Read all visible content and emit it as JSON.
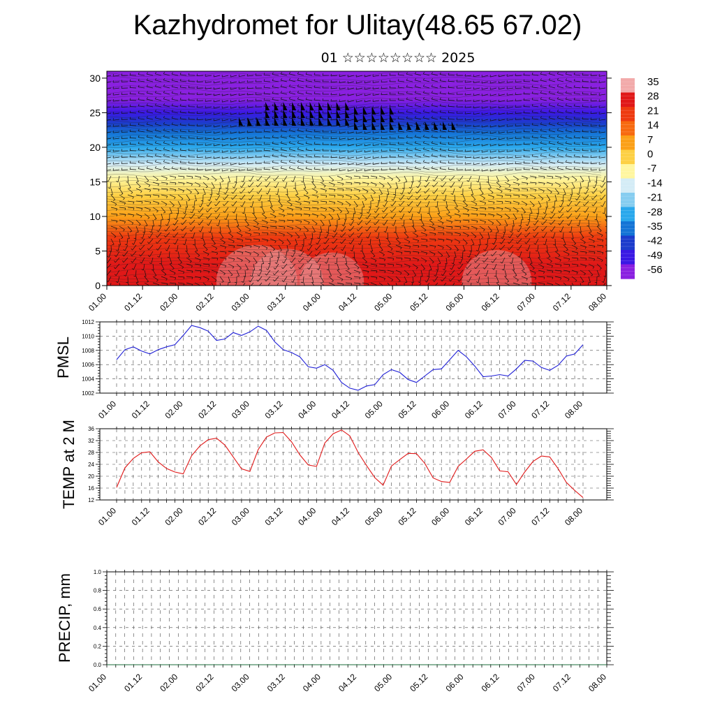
{
  "title": "Kazhydromet for Ulitay(48.65 67.02)",
  "subtitle": "01 ☆☆☆☆☆☆☆☆ 2025",
  "time_ticks": [
    "01.00",
    "01.12",
    "02.00",
    "02.12",
    "03.00",
    "03.12",
    "04.00",
    "04.12",
    "05.00",
    "05.12",
    "06.00",
    "06.12",
    "07.00",
    "07.12",
    "08.00"
  ],
  "chart_data": [
    {
      "type": "heatmap",
      "name": "cross-section",
      "x_ticks": [
        "01.00",
        "01.12",
        "02.00",
        "02.12",
        "03.00",
        "03.12",
        "04.00",
        "04.12",
        "05.00",
        "05.12",
        "06.00",
        "06.12",
        "07.00",
        "07.12",
        "08.00"
      ],
      "y_ticks": [
        0,
        5,
        10,
        15,
        20,
        25,
        30
      ],
      "ylim": [
        0,
        31
      ],
      "colorbar_labels": [
        "35",
        "28",
        "21",
        "14",
        "7",
        "0",
        "-7",
        "-14",
        "-21",
        "-28",
        "-35",
        "-42",
        "-49",
        "-56"
      ],
      "colorbar_colors": [
        "#f2aaaa",
        "#e01818",
        "#ee3a10",
        "#f76a10",
        "#fba018",
        "#fdd044",
        "#fff6a0",
        "#d4ecf6",
        "#86cdf0",
        "#2aa8ec",
        "#1474d6",
        "#1c3ccc",
        "#3a18e4",
        "#8a20e0"
      ],
      "levels": [
        {
          "height": 0,
          "temp": 30
        },
        {
          "height": 3,
          "temp": 27
        },
        {
          "height": 7,
          "temp": 18
        },
        {
          "height": 10,
          "temp": 10
        },
        {
          "height": 13,
          "temp": 2
        },
        {
          "height": 15.5,
          "temp": -8
        },
        {
          "height": 17.5,
          "temp": -15
        },
        {
          "height": 20,
          "temp": -26
        },
        {
          "height": 22,
          "temp": -36
        },
        {
          "height": 23.5,
          "temp": -44
        },
        {
          "height": 25,
          "temp": -52
        },
        {
          "height": 27,
          "temp": -57
        },
        {
          "height": 31,
          "temp": -60
        }
      ]
    },
    {
      "type": "line",
      "name": "PMSL",
      "ylabel": "PMSL",
      "ylim": [
        1002,
        1012
      ],
      "y_ticks": [
        1002,
        1004,
        1006,
        1008,
        1010,
        1012
      ],
      "x_ticks": [
        "01.00",
        "01.12",
        "02.00",
        "02.12",
        "03.00",
        "03.12",
        "04.00",
        "04.12",
        "05.00",
        "05.12",
        "06.00",
        "06.12",
        "07.00",
        "07.12",
        "08.00"
      ],
      "color": "#1f1fd6",
      "x": [
        0,
        3,
        6,
        9,
        12,
        15,
        18,
        21,
        24,
        27,
        30,
        33,
        36,
        39,
        42,
        45,
        48,
        51,
        54,
        57,
        60,
        63,
        66,
        69,
        72,
        75,
        78,
        81,
        84,
        87,
        90,
        93,
        96,
        99,
        102,
        105,
        108,
        111,
        114,
        117,
        120,
        123,
        126,
        129,
        132,
        135,
        138,
        141,
        144,
        147,
        150,
        153,
        156,
        159,
        162,
        165,
        168
      ],
      "values": [
        1006.7,
        1008.1,
        1008.5,
        1007.9,
        1007.5,
        1008.1,
        1008.5,
        1008.8,
        1010.1,
        1011.5,
        1011.2,
        1010.7,
        1009.4,
        1009.6,
        1010.5,
        1010.1,
        1010.6,
        1011.4,
        1010.8,
        1009.2,
        1008.1,
        1007.7,
        1007.1,
        1005.7,
        1005.5,
        1006.0,
        1005.2,
        1003.5,
        1002.7,
        1002.4,
        1003.0,
        1003.2,
        1004.6,
        1005.3,
        1004.9,
        1003.9,
        1003.5,
        1004.4,
        1005.3,
        1005.4,
        1006.7,
        1008.0,
        1007.1,
        1005.8,
        1004.3,
        1004.4,
        1004.6,
        1004.4,
        1005.4,
        1006.6,
        1006.5,
        1005.6,
        1005.2,
        1005.9,
        1007.2,
        1007.5,
        1008.8
      ]
    },
    {
      "type": "line",
      "name": "TEMP at 2 M",
      "ylabel": "TEMP at 2 M",
      "ylim": [
        12,
        36
      ],
      "y_ticks": [
        12,
        16,
        20,
        24,
        28,
        32,
        36
      ],
      "x_ticks": [
        "01.00",
        "01.12",
        "02.00",
        "02.12",
        "03.00",
        "03.12",
        "04.00",
        "04.12",
        "05.00",
        "05.12",
        "06.00",
        "06.12",
        "07.00",
        "07.12",
        "08.00"
      ],
      "color": "#e01818",
      "x": [
        0,
        3,
        6,
        9,
        12,
        15,
        18,
        21,
        24,
        27,
        30,
        33,
        36,
        39,
        42,
        45,
        48,
        51,
        54,
        57,
        60,
        63,
        66,
        69,
        72,
        75,
        78,
        81,
        84,
        87,
        90,
        93,
        96,
        99,
        102,
        105,
        108,
        111,
        114,
        117,
        120,
        123,
        126,
        129,
        132,
        135,
        138,
        141,
        144,
        147,
        150,
        153,
        156,
        159,
        162,
        165,
        168
      ],
      "values": [
        16.2,
        22.8,
        26.0,
        27.9,
        28.2,
        24.8,
        22.6,
        21.4,
        20.8,
        26.9,
        30.2,
        32.3,
        32.8,
        30.5,
        26.5,
        22.5,
        21.6,
        29.0,
        33.2,
        34.6,
        34.7,
        31.6,
        27.2,
        23.8,
        23.3,
        31.2,
        34.3,
        35.6,
        33.6,
        28.0,
        23.6,
        19.5,
        17.0,
        23.4,
        25.6,
        27.7,
        27.6,
        24.3,
        19.4,
        18.2,
        17.9,
        23.3,
        25.8,
        28.4,
        28.9,
        26.3,
        21.8,
        21.5,
        17.2,
        21.4,
        25.0,
        26.8,
        26.5,
        22.6,
        17.9,
        15.2,
        12.8
      ]
    },
    {
      "type": "line",
      "name": "PRECIP, mm",
      "ylabel": "PRECIP, mm",
      "ylim": [
        0,
        1
      ],
      "y_ticks": [
        "0.0",
        "0.2",
        "0.4",
        "0.6",
        "0.8",
        "1.0"
      ],
      "x_ticks": [
        "01.00",
        "01.12",
        "02.00",
        "02.12",
        "03.00",
        "03.12",
        "04.00",
        "04.12",
        "05.00",
        "05.12",
        "06.00",
        "06.12",
        "07.00",
        "07.12",
        "08.00"
      ],
      "color": "#1a6b3a",
      "x": [
        0,
        168
      ],
      "values": [
        0,
        0
      ]
    }
  ]
}
